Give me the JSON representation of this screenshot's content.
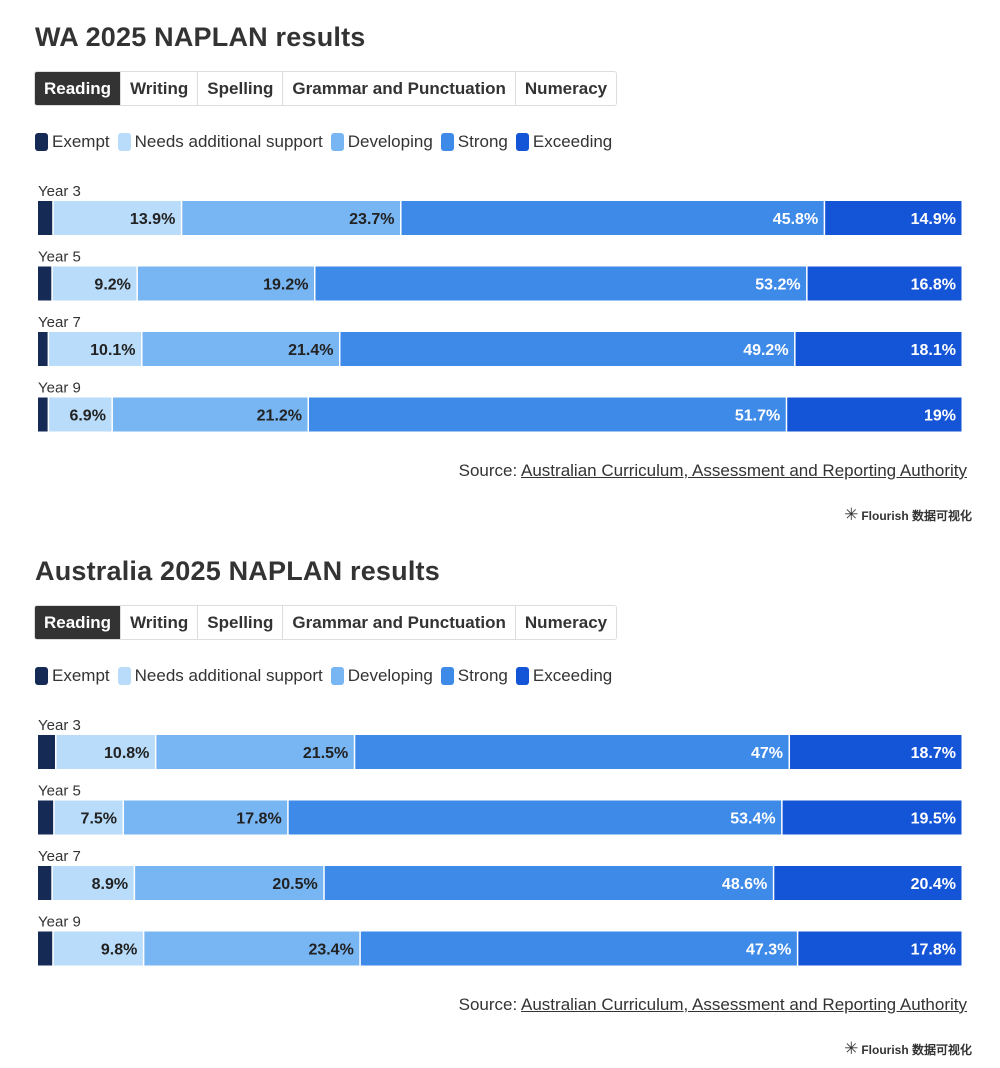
{
  "series_names": [
    "Exempt",
    "Needs additional support",
    "Developing",
    "Strong",
    "Exceeding"
  ],
  "series_colors": [
    "#152a55",
    "#b9dcfa",
    "#78b5f3",
    "#3e8ae9",
    "#1454d6"
  ],
  "label_colors": [
    "#ffffff",
    "#222222",
    "#222222",
    "#ffffff",
    "#ffffff"
  ],
  "panels": [
    {
      "title": "WA 2025 NAPLAN results",
      "tabs": [
        "Reading",
        "Writing",
        "Spelling",
        "Grammar and Punctuation",
        "Numeracy"
      ],
      "active_tab": "Reading",
      "source_prefix": "Source:",
      "source_link": "Australian Curriculum, Assessment and Reporting Authority",
      "credit": "Flourish 数据可视化"
    },
    {
      "title": "Australia 2025 NAPLAN results",
      "tabs": [
        "Reading",
        "Writing",
        "Spelling",
        "Grammar and Punctuation",
        "Numeracy"
      ],
      "active_tab": "Reading",
      "source_prefix": "Source:",
      "source_link": "Australian Curriculum, Assessment and Reporting Authority",
      "credit": "Flourish 数据可视化"
    }
  ],
  "chart_data": [
    {
      "type": "bar",
      "stacked": true,
      "orientation": "horizontal",
      "title": "WA 2025 NAPLAN results",
      "categories": [
        "Year 3",
        "Year 5",
        "Year 7",
        "Year 9"
      ],
      "series": [
        {
          "name": "Exempt",
          "values": [
            1.7,
            1.6,
            1.2,
            1.2
          ]
        },
        {
          "name": "Needs additional support",
          "values": [
            13.9,
            9.2,
            10.1,
            6.9
          ]
        },
        {
          "name": "Developing",
          "values": [
            23.7,
            19.2,
            21.4,
            21.2
          ]
        },
        {
          "name": "Strong",
          "values": [
            45.8,
            53.2,
            49.2,
            51.7
          ]
        },
        {
          "name": "Exceeding",
          "values": [
            14.9,
            16.8,
            18.1,
            19
          ]
        }
      ],
      "labels": [
        [
          null,
          "13.9%",
          "23.7%",
          "45.8%",
          "14.9%"
        ],
        [
          null,
          "9.2%",
          "19.2%",
          "53.2%",
          "16.8%"
        ],
        [
          null,
          "10.1%",
          "21.4%",
          "49.2%",
          "18.1%"
        ],
        [
          null,
          "6.9%",
          "21.2%",
          "51.7%",
          "19%"
        ]
      ],
      "xlim": [
        0,
        100
      ],
      "legend": "top-left"
    },
    {
      "type": "bar",
      "stacked": true,
      "orientation": "horizontal",
      "title": "Australia 2025 NAPLAN results",
      "categories": [
        "Year 3",
        "Year 5",
        "Year 7",
        "Year 9"
      ],
      "series": [
        {
          "name": "Exempt",
          "values": [
            2.0,
            1.8,
            1.6,
            1.7
          ]
        },
        {
          "name": "Needs additional support",
          "values": [
            10.8,
            7.5,
            8.9,
            9.8
          ]
        },
        {
          "name": "Developing",
          "values": [
            21.5,
            17.8,
            20.5,
            23.4
          ]
        },
        {
          "name": "Strong",
          "values": [
            47,
            53.4,
            48.6,
            47.3
          ]
        },
        {
          "name": "Exceeding",
          "values": [
            18.7,
            19.5,
            20.4,
            17.8
          ]
        }
      ],
      "labels": [
        [
          null,
          "10.8%",
          "21.5%",
          "47%",
          "18.7%"
        ],
        [
          null,
          "7.5%",
          "17.8%",
          "53.4%",
          "19.5%"
        ],
        [
          null,
          "8.9%",
          "20.5%",
          "48.6%",
          "20.4%"
        ],
        [
          null,
          "9.8%",
          "23.4%",
          "47.3%",
          "17.8%"
        ]
      ],
      "xlim": [
        0,
        100
      ],
      "legend": "top-left"
    }
  ]
}
